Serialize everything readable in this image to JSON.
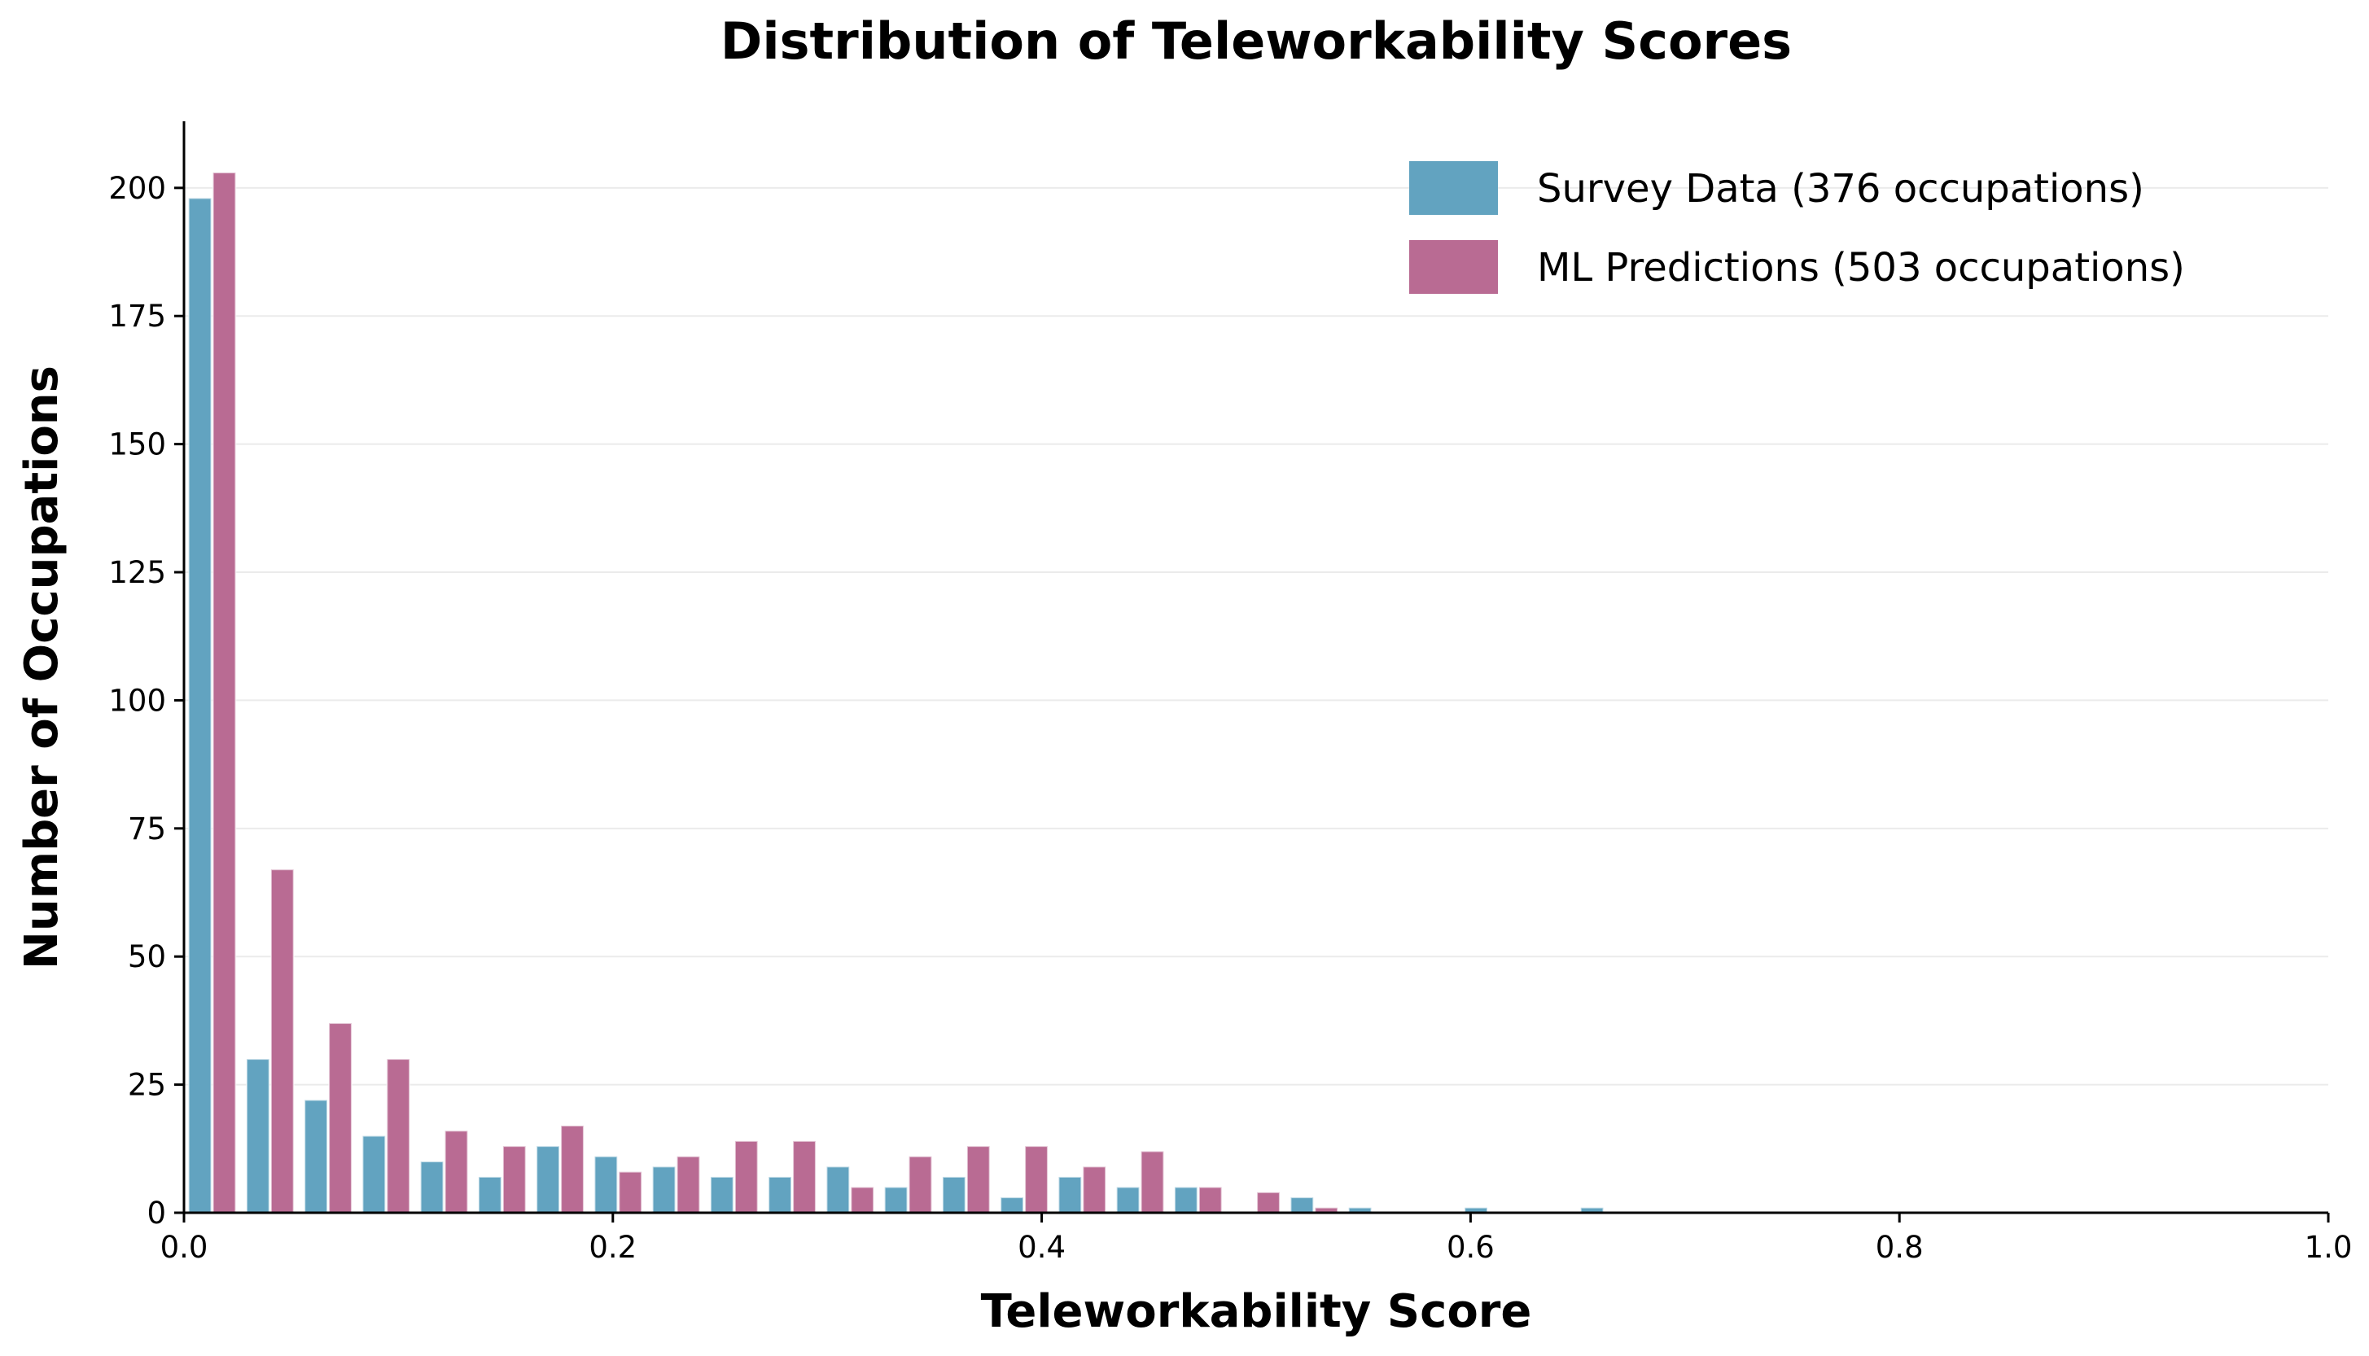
{
  "chart_data": {
    "type": "bar",
    "title": "Distribution of Teleworkability Scores",
    "xlabel": "Teleworkability Score",
    "ylabel": "Number of Occupations",
    "xlim": [
      0,
      1.0
    ],
    "ylim": [
      0,
      213
    ],
    "xticks": [
      "0.0",
      "0.2",
      "0.4",
      "0.6",
      "0.8",
      "1.0"
    ],
    "yticks": [
      "0",
      "25",
      "50",
      "75",
      "100",
      "125",
      "150",
      "175",
      "200"
    ],
    "grid": "horizontal",
    "legend_position": "top-right",
    "bin_width": 0.02705,
    "bin_start": 0.0,
    "series": [
      {
        "name": "Survey Data (376 occupations)",
        "color": "#62a3c0",
        "values": [
          198,
          30,
          22,
          15,
          10,
          7,
          13,
          11,
          9,
          7,
          7,
          9,
          5,
          7,
          3,
          7,
          5,
          5,
          0,
          3,
          1,
          0,
          1,
          0,
          1
        ]
      },
      {
        "name": "ML Predictions (503 occupations)",
        "color": "#b96b93",
        "values": [
          203,
          67,
          37,
          30,
          16,
          13,
          17,
          8,
          11,
          14,
          14,
          5,
          11,
          13,
          13,
          9,
          12,
          5,
          4,
          1,
          0,
          0,
          0,
          0,
          0
        ]
      }
    ]
  }
}
